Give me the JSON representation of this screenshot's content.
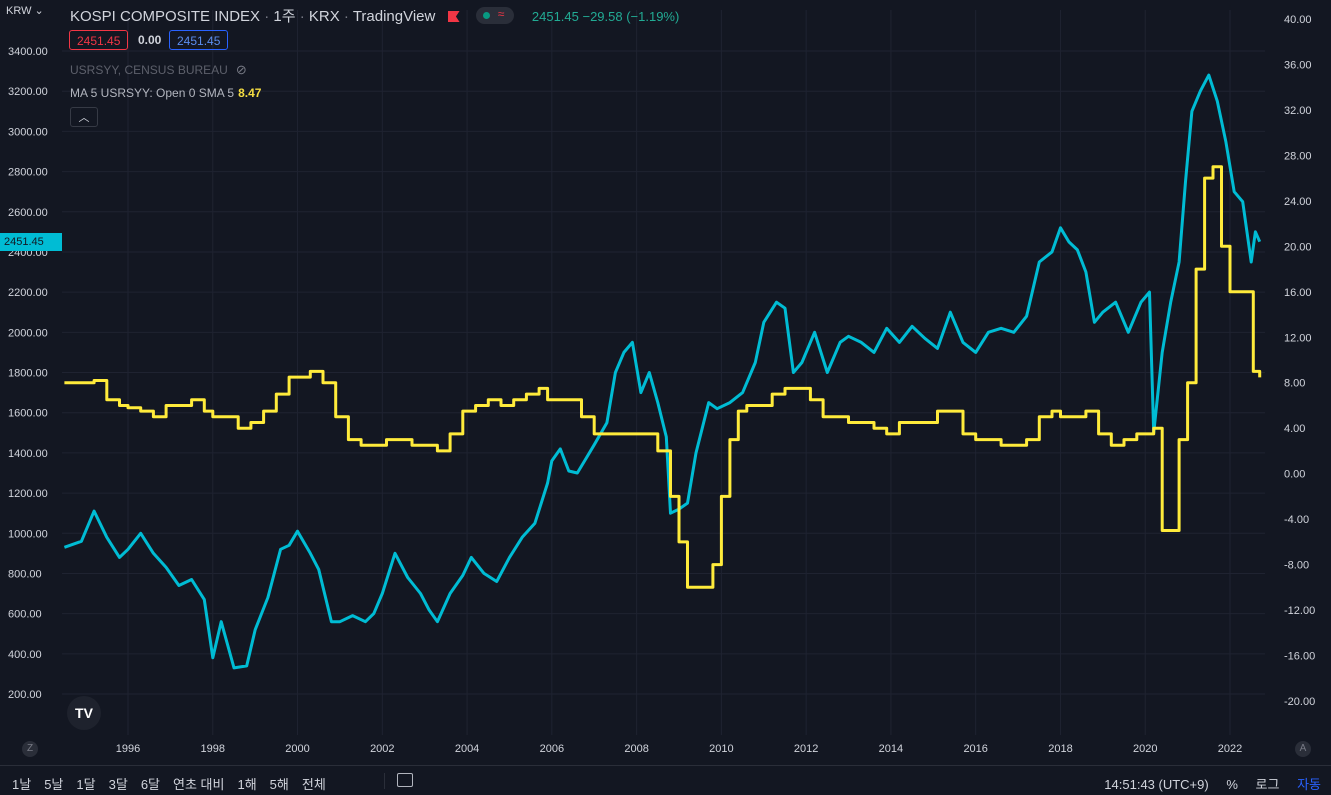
{
  "header": {
    "symbol": "KOSPI COMPOSITE INDEX",
    "interval": "1주",
    "exchange": "KRX",
    "provider": "TradingView",
    "quote": "2451.45 −29.58 (−1.19%)",
    "sell_price": "2451.45",
    "spread": "0.00",
    "buy_price": "2451.45"
  },
  "overlay": {
    "source": "USRSYY, CENSUS BUREAU",
    "ma_label": "MA 5 USRSYY: Open 0 SMA 5",
    "ma_value": "8.47"
  },
  "currency_label": "KRW",
  "last_price_label": "2451.45",
  "logo": "TV",
  "corner_left": "Z",
  "corner_right": "A",
  "bottom": {
    "ranges": [
      "1날",
      "5날",
      "1달",
      "3달",
      "6달",
      "연초 대비",
      "1해",
      "5해",
      "전체"
    ],
    "time": "14:51:43 (UTC+9)",
    "percent": "%",
    "log": "로그",
    "auto": "자동"
  },
  "colors": {
    "background": "#131722",
    "kospi": "#00bcd4",
    "ma": "#ffeb3b",
    "grid": "#1f2331"
  },
  "chart_data": {
    "type": "line",
    "x_ticks": [
      "1996",
      "1998",
      "2000",
      "2002",
      "2004",
      "2006",
      "2008",
      "2010",
      "2012",
      "2014",
      "2016",
      "2018",
      "2020",
      "2022"
    ],
    "y_left": {
      "ticks": [
        "3400.00",
        "3200.00",
        "3000.00",
        "2800.00",
        "2600.00",
        "2400.00",
        "2200.00",
        "2000.00",
        "1800.00",
        "1600.00",
        "1400.00",
        "1200.00",
        "1000.00",
        "800.00",
        "600.00",
        "400.00",
        "200.00"
      ],
      "range": [
        200,
        3400
      ]
    },
    "y_right": {
      "ticks": [
        "40.00",
        "36.00",
        "32.00",
        "28.00",
        "24.00",
        "20.00",
        "16.00",
        "12.00",
        "8.00",
        "4.00",
        "0.00",
        "-4.00",
        "-8.00",
        "-12.00",
        "-16.00",
        "-20.00"
      ],
      "range": [
        -20,
        40
      ]
    },
    "series": [
      {
        "name": "KOSPI COMPOSITE INDEX",
        "axis": "left",
        "points": [
          [
            1994.5,
            930
          ],
          [
            1994.9,
            960
          ],
          [
            1995.2,
            1110
          ],
          [
            1995.5,
            980
          ],
          [
            1995.8,
            880
          ],
          [
            1996.0,
            920
          ],
          [
            1996.3,
            1000
          ],
          [
            1996.6,
            900
          ],
          [
            1996.9,
            830
          ],
          [
            1997.2,
            740
          ],
          [
            1997.5,
            770
          ],
          [
            1997.8,
            670
          ],
          [
            1998.0,
            380
          ],
          [
            1998.2,
            560
          ],
          [
            1998.5,
            330
          ],
          [
            1998.8,
            340
          ],
          [
            1999.0,
            520
          ],
          [
            1999.3,
            680
          ],
          [
            1999.6,
            920
          ],
          [
            1999.8,
            940
          ],
          [
            2000.0,
            1010
          ],
          [
            2000.3,
            900
          ],
          [
            2000.5,
            820
          ],
          [
            2000.8,
            560
          ],
          [
            2001.0,
            560
          ],
          [
            2001.3,
            590
          ],
          [
            2001.6,
            560
          ],
          [
            2001.8,
            600
          ],
          [
            2002.0,
            700
          ],
          [
            2002.3,
            900
          ],
          [
            2002.6,
            780
          ],
          [
            2002.9,
            700
          ],
          [
            2003.1,
            620
          ],
          [
            2003.3,
            560
          ],
          [
            2003.6,
            700
          ],
          [
            2003.9,
            790
          ],
          [
            2004.1,
            880
          ],
          [
            2004.4,
            800
          ],
          [
            2004.7,
            760
          ],
          [
            2005.0,
            880
          ],
          [
            2005.3,
            980
          ],
          [
            2005.6,
            1050
          ],
          [
            2005.9,
            1250
          ],
          [
            2006.0,
            1360
          ],
          [
            2006.2,
            1420
          ],
          [
            2006.4,
            1310
          ],
          [
            2006.6,
            1300
          ],
          [
            2006.8,
            1370
          ],
          [
            2007.0,
            1440
          ],
          [
            2007.3,
            1550
          ],
          [
            2007.5,
            1800
          ],
          [
            2007.7,
            1900
          ],
          [
            2007.9,
            1950
          ],
          [
            2008.1,
            1700
          ],
          [
            2008.3,
            1800
          ],
          [
            2008.5,
            1650
          ],
          [
            2008.7,
            1480
          ],
          [
            2008.8,
            1100
          ],
          [
            2009.0,
            1120
          ],
          [
            2009.2,
            1150
          ],
          [
            2009.4,
            1400
          ],
          [
            2009.7,
            1650
          ],
          [
            2009.9,
            1620
          ],
          [
            2010.2,
            1650
          ],
          [
            2010.5,
            1700
          ],
          [
            2010.8,
            1850
          ],
          [
            2011.0,
            2050
          ],
          [
            2011.3,
            2150
          ],
          [
            2011.5,
            2120
          ],
          [
            2011.7,
            1800
          ],
          [
            2011.9,
            1850
          ],
          [
            2012.2,
            2000
          ],
          [
            2012.5,
            1800
          ],
          [
            2012.8,
            1950
          ],
          [
            2013.0,
            1980
          ],
          [
            2013.3,
            1950
          ],
          [
            2013.6,
            1900
          ],
          [
            2013.9,
            2020
          ],
          [
            2014.2,
            1950
          ],
          [
            2014.5,
            2030
          ],
          [
            2014.8,
            1970
          ],
          [
            2015.1,
            1920
          ],
          [
            2015.4,
            2100
          ],
          [
            2015.7,
            1950
          ],
          [
            2016.0,
            1900
          ],
          [
            2016.3,
            2000
          ],
          [
            2016.6,
            2020
          ],
          [
            2016.9,
            2000
          ],
          [
            2017.2,
            2080
          ],
          [
            2017.5,
            2350
          ],
          [
            2017.8,
            2400
          ],
          [
            2018.0,
            2520
          ],
          [
            2018.2,
            2450
          ],
          [
            2018.4,
            2410
          ],
          [
            2018.6,
            2300
          ],
          [
            2018.8,
            2050
          ],
          [
            2019.0,
            2100
          ],
          [
            2019.3,
            2150
          ],
          [
            2019.6,
            2000
          ],
          [
            2019.9,
            2150
          ],
          [
            2020.1,
            2200
          ],
          [
            2020.2,
            1500
          ],
          [
            2020.4,
            1900
          ],
          [
            2020.6,
            2150
          ],
          [
            2020.8,
            2350
          ],
          [
            2020.95,
            2750
          ],
          [
            2021.1,
            3100
          ],
          [
            2021.3,
            3200
          ],
          [
            2021.5,
            3280
          ],
          [
            2021.7,
            3150
          ],
          [
            2021.9,
            2950
          ],
          [
            2022.1,
            2700
          ],
          [
            2022.3,
            2650
          ],
          [
            2022.5,
            2350
          ],
          [
            2022.6,
            2500
          ],
          [
            2022.7,
            2451
          ]
        ]
      },
      {
        "name": "MA 5 USRSYY: Open 0 SMA 5",
        "axis": "right",
        "points": [
          [
            1994.5,
            8
          ],
          [
            1994.9,
            8
          ],
          [
            1995.2,
            8.2
          ],
          [
            1995.5,
            6.5
          ],
          [
            1995.8,
            6
          ],
          [
            1996.0,
            5.8
          ],
          [
            1996.3,
            5.5
          ],
          [
            1996.6,
            5
          ],
          [
            1996.9,
            6
          ],
          [
            1997.2,
            6
          ],
          [
            1997.5,
            6.5
          ],
          [
            1997.8,
            5.5
          ],
          [
            1998.0,
            5
          ],
          [
            1998.3,
            5
          ],
          [
            1998.6,
            4
          ],
          [
            1998.9,
            4.5
          ],
          [
            1999.2,
            5.5
          ],
          [
            1999.5,
            7
          ],
          [
            1999.8,
            8.5
          ],
          [
            2000.0,
            8.5
          ],
          [
            2000.3,
            9
          ],
          [
            2000.6,
            8
          ],
          [
            2000.9,
            5
          ],
          [
            2001.2,
            3
          ],
          [
            2001.5,
            2.5
          ],
          [
            2001.8,
            2.5
          ],
          [
            2002.1,
            3
          ],
          [
            2002.4,
            3
          ],
          [
            2002.7,
            2.5
          ],
          [
            2003.0,
            2.5
          ],
          [
            2003.3,
            2
          ],
          [
            2003.6,
            3.5
          ],
          [
            2003.9,
            5.5
          ],
          [
            2004.2,
            6
          ],
          [
            2004.5,
            6.5
          ],
          [
            2004.8,
            6
          ],
          [
            2005.1,
            6.5
          ],
          [
            2005.4,
            7
          ],
          [
            2005.7,
            7.5
          ],
          [
            2005.9,
            6.5
          ],
          [
            2006.2,
            6.5
          ],
          [
            2006.4,
            6.5
          ],
          [
            2006.7,
            5
          ],
          [
            2007.0,
            3.5
          ],
          [
            2007.3,
            3.5
          ],
          [
            2007.6,
            3.5
          ],
          [
            2007.9,
            3.5
          ],
          [
            2008.2,
            3.5
          ],
          [
            2008.5,
            2
          ],
          [
            2008.8,
            -2
          ],
          [
            2009.0,
            -6
          ],
          [
            2009.2,
            -10
          ],
          [
            2009.5,
            -10
          ],
          [
            2009.8,
            -8
          ],
          [
            2010.0,
            -2
          ],
          [
            2010.2,
            3
          ],
          [
            2010.4,
            5.5
          ],
          [
            2010.6,
            6
          ],
          [
            2010.9,
            6
          ],
          [
            2011.2,
            7
          ],
          [
            2011.5,
            7.5
          ],
          [
            2011.8,
            7.5
          ],
          [
            2012.1,
            6.5
          ],
          [
            2012.4,
            5
          ],
          [
            2012.7,
            5
          ],
          [
            2013.0,
            4.5
          ],
          [
            2013.3,
            4.5
          ],
          [
            2013.6,
            4
          ],
          [
            2013.9,
            3.5
          ],
          [
            2014.2,
            4.5
          ],
          [
            2014.5,
            4.5
          ],
          [
            2014.8,
            4.5
          ],
          [
            2015.1,
            5.5
          ],
          [
            2015.4,
            5.5
          ],
          [
            2015.7,
            3.5
          ],
          [
            2016.0,
            3
          ],
          [
            2016.3,
            3
          ],
          [
            2016.6,
            2.5
          ],
          [
            2016.9,
            2.5
          ],
          [
            2017.2,
            3
          ],
          [
            2017.5,
            5
          ],
          [
            2017.8,
            5.5
          ],
          [
            2018.0,
            5
          ],
          [
            2018.3,
            5
          ],
          [
            2018.6,
            5.5
          ],
          [
            2018.9,
            3.5
          ],
          [
            2019.2,
            2.5
          ],
          [
            2019.5,
            3
          ],
          [
            2019.8,
            3.5
          ],
          [
            2020.0,
            3.5
          ],
          [
            2020.2,
            4
          ],
          [
            2020.4,
            -5
          ],
          [
            2020.6,
            -5
          ],
          [
            2020.8,
            3
          ],
          [
            2021.0,
            8
          ],
          [
            2021.2,
            18
          ],
          [
            2021.4,
            26
          ],
          [
            2021.6,
            27
          ],
          [
            2021.8,
            20
          ],
          [
            2022.0,
            16
          ],
          [
            2022.2,
            16
          ],
          [
            2022.4,
            16
          ],
          [
            2022.55,
            9
          ],
          [
            2022.7,
            8.47
          ]
        ]
      }
    ]
  }
}
